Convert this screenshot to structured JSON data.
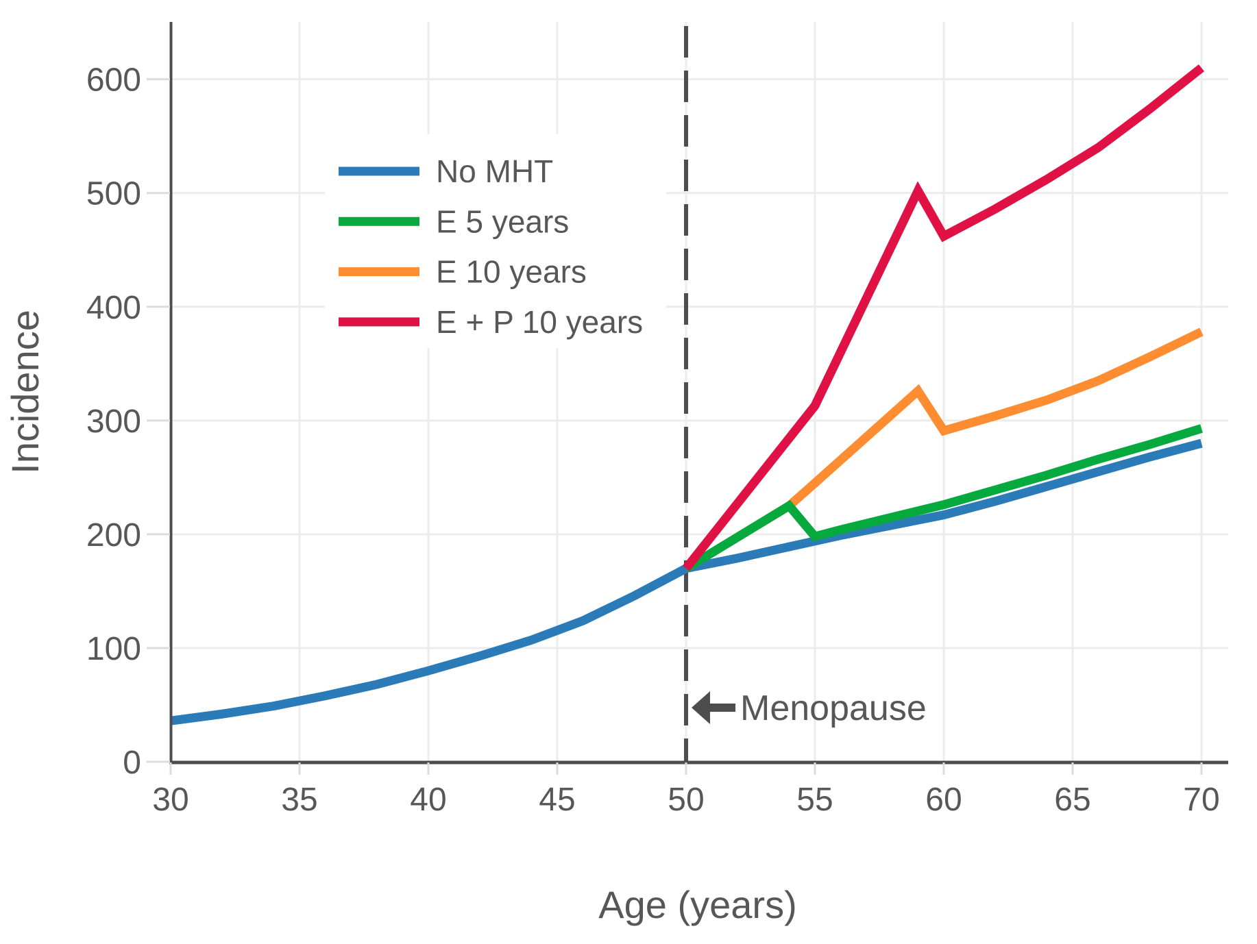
{
  "chart_data": {
    "type": "line",
    "title": "",
    "xlabel": "Age (years)",
    "ylabel": "Incidence",
    "x_ticks": [
      30,
      35,
      40,
      45,
      50,
      55,
      60,
      65,
      70
    ],
    "y_ticks": [
      0,
      100,
      200,
      300,
      400,
      500,
      600
    ],
    "xlim": [
      30,
      70
    ],
    "ylim": [
      0,
      650
    ],
    "grid": true,
    "legend_position": "upper-left",
    "menopause_line": {
      "x": 50,
      "style": "dashed"
    },
    "annotation": {
      "text": "Menopause",
      "arrow": "left",
      "points_to_x": 50,
      "y": 48
    },
    "series": [
      {
        "name": "No MHT",
        "color": "#2b7bb9",
        "x": [
          30,
          32,
          34,
          36,
          38,
          40,
          42,
          44,
          46,
          48,
          50,
          52,
          54,
          56,
          58,
          60,
          62,
          64,
          66,
          68,
          70
        ],
        "y": [
          36,
          42,
          49,
          58,
          68,
          80,
          93,
          107,
          124,
          146,
          170,
          179,
          189,
          199,
          208,
          217,
          229,
          242,
          255,
          268,
          280
        ]
      },
      {
        "name": "E 5 years",
        "color": "#06a93e",
        "x": [
          50,
          54,
          55,
          56,
          58,
          60,
          62,
          64,
          66,
          68,
          70
        ],
        "y": [
          170,
          225,
          198,
          204,
          215,
          226,
          239,
          252,
          266,
          279,
          293
        ]
      },
      {
        "name": "E 10 years",
        "color": "#fd8d30",
        "x": [
          50,
          54,
          55,
          59,
          60,
          62,
          64,
          66,
          68,
          70
        ],
        "y": [
          170,
          225,
          245,
          326,
          291,
          304,
          318,
          335,
          356,
          378
        ]
      },
      {
        "name": "E + P 10 years",
        "color": "#e01245",
        "x": [
          50,
          55,
          59,
          60,
          62,
          64,
          66,
          68,
          70
        ],
        "y": [
          170,
          313,
          502,
          462,
          486,
          512,
          540,
          574,
          610
        ]
      }
    ],
    "style": {
      "axis_color": "#4d4d4d",
      "grid_color": "#ececeb",
      "tick_color": "#dcdcdc",
      "text_color": "#575757",
      "background": "#ffffff"
    }
  }
}
